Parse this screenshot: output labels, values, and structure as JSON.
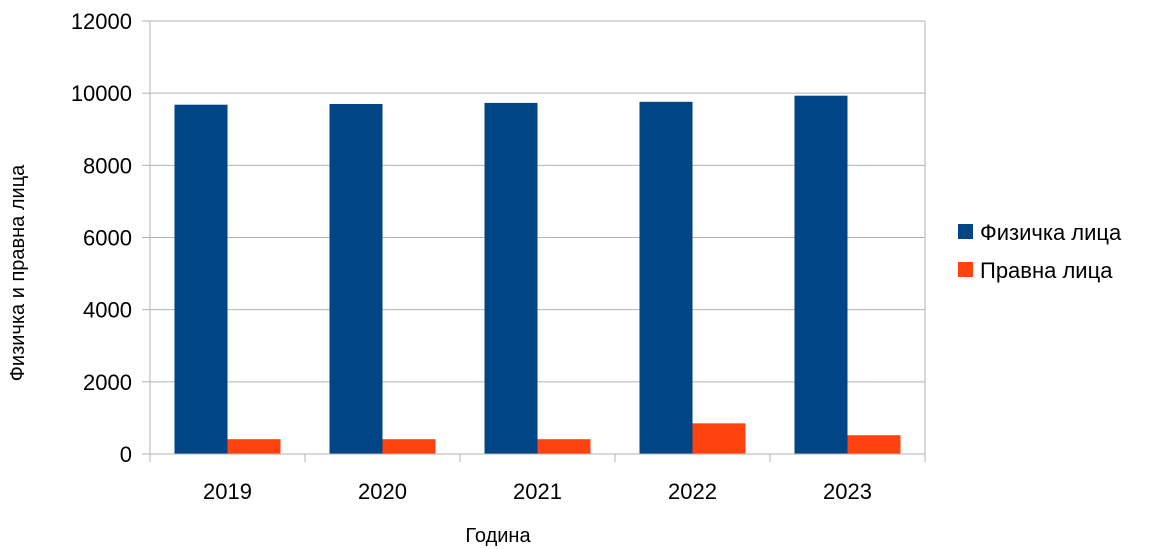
{
  "chart_data": {
    "type": "bar",
    "title": "",
    "xlabel": "Година",
    "ylabel": "Физичка и правна лица",
    "categories": [
      "2019",
      "2020",
      "2021",
      "2022",
      "2023"
    ],
    "ylim": [
      0,
      12000
    ],
    "yticks": [
      "0",
      "2000",
      "4000",
      "6000",
      "8000",
      "10000",
      "12000"
    ],
    "grid": true,
    "legend_position": "right",
    "series": [
      {
        "name": "Физичка лица",
        "color": "#004586",
        "values": [
          9680,
          9700,
          9730,
          9760,
          9930
        ]
      },
      {
        "name": "Правна лица",
        "color": "#ff420e",
        "values": [
          410,
          410,
          410,
          850,
          520
        ]
      }
    ]
  }
}
